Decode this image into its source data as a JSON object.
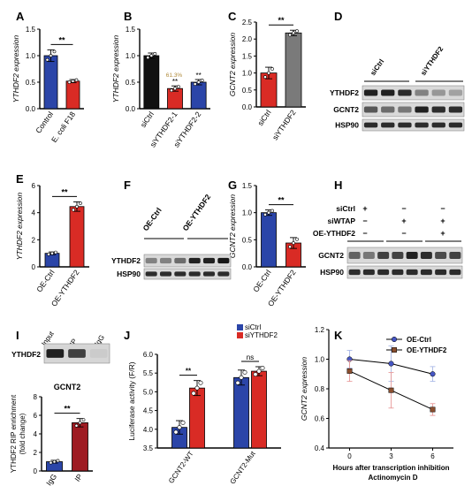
{
  "colors": {
    "red": "#d92b25",
    "blue": "#2b45a8",
    "black": "#111111",
    "gray": "#7a7a7a",
    "olive": "#b08a3a",
    "dark_red": "#9e1b22",
    "light_blue": "#a9b8e6",
    "line_blue": "#4656c4",
    "line_brown": "#8a4f2f"
  },
  "chart_data": [
    {
      "panel": "A",
      "type": "bar",
      "ylabel": "YTHDF2 expression",
      "ylim": [
        0,
        1.5
      ],
      "yticks": [
        "0.0",
        "0.5",
        "1.0",
        "1.5"
      ],
      "categories": [
        "Control",
        "E. coli F18"
      ],
      "values": [
        1.0,
        0.52
      ],
      "errors": [
        0.11,
        0.03
      ],
      "colors": [
        "#2b45a8",
        "#d92b25"
      ],
      "sig": "**"
    },
    {
      "panel": "B",
      "type": "bar",
      "ylabel": "YTHDF2 expression",
      "ylim": [
        0,
        1.5
      ],
      "yticks": [
        "0.0",
        "0.5",
        "1.0",
        "1.5"
      ],
      "categories": [
        "siCtrl",
        "siYTHDF2-1",
        "siYTHDF2-2"
      ],
      "values": [
        1.0,
        0.38,
        0.5
      ],
      "errors": [
        0.05,
        0.05,
        0.05
      ],
      "colors": [
        "#111111",
        "#d92b25",
        "#2b45a8"
      ],
      "bar_labels": [
        "",
        "**",
        "**"
      ],
      "annotation": "61.3%"
    },
    {
      "panel": "C",
      "type": "bar",
      "ylabel": "GCNT2 expression",
      "ylim": [
        0,
        2.5
      ],
      "yticks": [
        "0.0",
        "0.5",
        "1.0",
        "1.5",
        "2.0",
        "2.5"
      ],
      "categories": [
        "siCtrl",
        "siYTHDF2"
      ],
      "values": [
        1.0,
        2.18
      ],
      "errors": [
        0.17,
        0.08
      ],
      "colors": [
        "#d92b25",
        "#7a7a7a"
      ],
      "sig": "**"
    },
    {
      "panel": "E",
      "type": "bar",
      "ylabel": "YTHDF2 expression",
      "ylim": [
        0,
        6
      ],
      "yticks": [
        "0",
        "2",
        "4",
        "6"
      ],
      "categories": [
        "OE-Ctrl",
        "OE-YTHDF2"
      ],
      "values": [
        1.0,
        4.45
      ],
      "errors": [
        0.1,
        0.35
      ],
      "colors": [
        "#2b45a8",
        "#d92b25"
      ],
      "sig": "**"
    },
    {
      "panel": "G",
      "type": "bar",
      "ylabel": "GCNT2 expression",
      "ylim": [
        0,
        1.5
      ],
      "yticks": [
        "0.0",
        "0.5",
        "1.0",
        "1.5"
      ],
      "categories": [
        "OE-Ctrl",
        "OE-YTHDF2"
      ],
      "values": [
        1.0,
        0.44
      ],
      "errors": [
        0.05,
        0.1
      ],
      "colors": [
        "#2b45a8",
        "#d92b25"
      ],
      "sig": "**"
    },
    {
      "panel": "I",
      "type": "bar",
      "title": "GCNT2",
      "ylabel": "YTHDF2 RIP enrichment (fold change)",
      "ylim": [
        0,
        8
      ],
      "yticks": [
        "0",
        "2",
        "4",
        "6",
        "8"
      ],
      "categories": [
        "IgG",
        "IP"
      ],
      "values": [
        1.0,
        5.2
      ],
      "errors": [
        0.15,
        0.45
      ],
      "colors": [
        "#2b45a8",
        "#9e1b22"
      ],
      "sig": "**"
    },
    {
      "panel": "J",
      "type": "bar",
      "ylabel": "Luciferase activity (F/R)",
      "ylim": [
        3.5,
        6.0
      ],
      "yticks": [
        "3.5",
        "4.0",
        "4.5",
        "5.0",
        "5.5",
        "6.0"
      ],
      "categories": [
        "GCNT2-WT",
        "GCNT2-Mut"
      ],
      "series": [
        {
          "name": "siCtrl",
          "values": [
            4.05,
            5.38
          ],
          "errors": [
            0.18,
            0.2
          ],
          "color": "#2b45a8"
        },
        {
          "name": "siYTHDF2",
          "values": [
            5.1,
            5.55
          ],
          "errors": [
            0.2,
            0.12
          ],
          "color": "#d92b25"
        }
      ],
      "comparisons": [
        "**",
        "ns"
      ]
    },
    {
      "panel": "K",
      "type": "line",
      "xlabel": "Hours after transcription inhibition",
      "xlabel2": "Actinomycin D",
      "ylabel": "GCNT2 expression",
      "xlim": [
        -1.5,
        7.5
      ],
      "ylim": [
        0.4,
        1.2
      ],
      "x": [
        0,
        3,
        6
      ],
      "xticks": [
        "0",
        "3",
        "6"
      ],
      "yticks": [
        "0.4",
        "0.6",
        "0.8",
        "1.0",
        "1.2"
      ],
      "series": [
        {
          "name": "OE-Ctrl",
          "values": [
            1.0,
            0.97,
            0.9
          ],
          "errors": [
            0.06,
            0.12,
            0.05
          ],
          "color": "#4656c4",
          "marker": "circle"
        },
        {
          "name": "OE-YTHDF2",
          "values": [
            0.92,
            0.79,
            0.66
          ],
          "errors": [
            0.07,
            0.12,
            0.04
          ],
          "color": "#8a4f2f",
          "marker": "square"
        }
      ]
    }
  ],
  "panel_letters": [
    "A",
    "B",
    "C",
    "D",
    "E",
    "F",
    "G",
    "H",
    "I",
    "J",
    "K"
  ],
  "blot_d": {
    "lanes": [
      "siCtrl",
      "siYTHDF2"
    ],
    "rows": [
      "YTHDF2",
      "GCNT2",
      "HSP90"
    ]
  },
  "blot_f": {
    "lanes": [
      "OE-Ctrl",
      "OE-YTHDF2"
    ],
    "rows": [
      "YTHDF2",
      "HSP90"
    ]
  },
  "blot_h": {
    "conditions": [
      {
        "label": "siCtrl",
        "marks": [
          "+",
          "−",
          "−"
        ]
      },
      {
        "label": "siWTAP",
        "marks": [
          "−",
          "+",
          "+"
        ]
      },
      {
        "label": "OE-YTHDF2",
        "marks": [
          "−",
          "−",
          "+"
        ]
      }
    ],
    "rows": [
      "GCNT2",
      "HSP90"
    ]
  },
  "blot_i": {
    "row": "YTHDF2",
    "lanes": [
      "Input",
      "IP",
      "IgG"
    ]
  }
}
